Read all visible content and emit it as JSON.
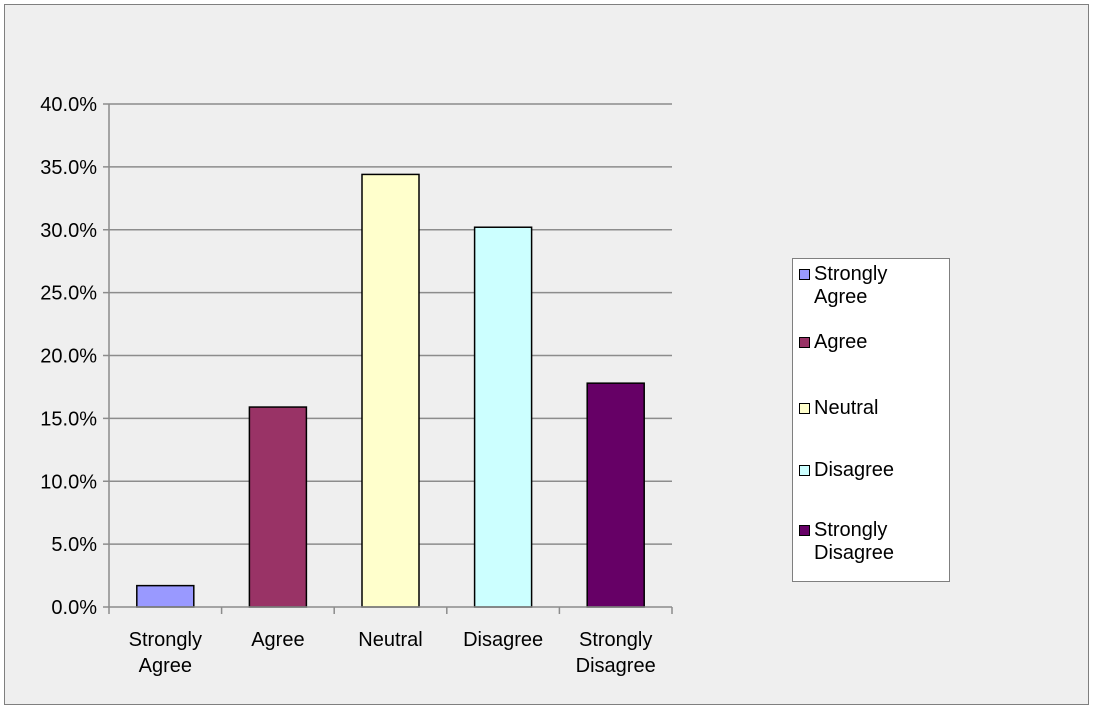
{
  "chart_data": {
    "type": "bar",
    "title": "",
    "xlabel": "",
    "ylabel": "",
    "categories": [
      "Strongly Agree",
      "Agree",
      "Neutral",
      "Disagree",
      "Strongly Disagree"
    ],
    "category_label_lines": [
      [
        "Strongly",
        "Agree"
      ],
      [
        "Agree"
      ],
      [
        "Neutral"
      ],
      [
        "Disagree"
      ],
      [
        "Strongly",
        "Disagree"
      ]
    ],
    "values": [
      1.7,
      15.9,
      34.4,
      30.2,
      17.8
    ],
    "colors": [
      "#9999ff",
      "#993366",
      "#ffffcc",
      "#ccffff",
      "#660066"
    ],
    "ylim": [
      0,
      40
    ],
    "yticks": [
      "0.0%",
      "5.0%",
      "10.0%",
      "15.0%",
      "20.0%",
      "25.0%",
      "30.0%",
      "35.0%",
      "40.0%"
    ],
    "grid": true,
    "legend_position": "right",
    "legend": [
      {
        "label_lines": [
          "Strongly",
          "Agree"
        ],
        "color": "#9999ff"
      },
      {
        "label_lines": [
          "Agree"
        ],
        "color": "#993366"
      },
      {
        "label_lines": [
          "Neutral"
        ],
        "color": "#ffffcc"
      },
      {
        "label_lines": [
          "Disagree"
        ],
        "color": "#ccffff"
      },
      {
        "label_lines": [
          "Strongly",
          "Disagree"
        ],
        "color": "#660066"
      }
    ]
  }
}
